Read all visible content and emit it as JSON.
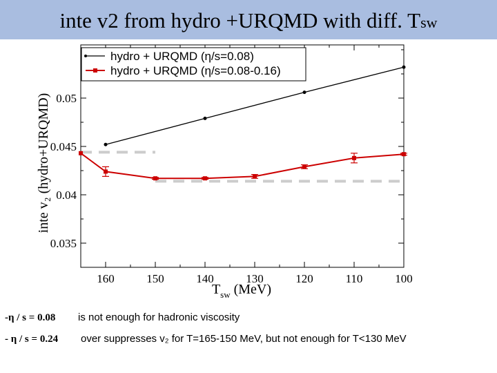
{
  "slide": {
    "title_main": "inte v2 from hydro +URQMD with diff. T",
    "title_sub": "sw"
  },
  "chart_data": {
    "type": "line",
    "ylabel": "inte v₂ (hydro+URQMD)",
    "xlabel_main": "T",
    "xlabel_sub": "sw",
    "xlabel_unit": "(MeV)",
    "x_reversed": true,
    "xlim": [
      165,
      100
    ],
    "ylim": [
      0.0325,
      0.0555
    ],
    "x_ticks": [
      160,
      150,
      140,
      130,
      120,
      110,
      100
    ],
    "y_ticks": [
      0.035,
      0.04,
      0.045,
      0.05
    ],
    "y_tick_labels": [
      "0.035",
      "0.04",
      "0.045",
      "0.05"
    ],
    "legend_position": "top-left",
    "series": [
      {
        "name": "hydro + URQMD (η/s=0.08)",
        "color": "#000000",
        "x": [
          160,
          140,
          120,
          100
        ],
        "y": [
          0.0452,
          0.0479,
          0.0506,
          0.0532
        ],
        "err": [
          0,
          0,
          0,
          0
        ]
      },
      {
        "name": "hydro + URQMD (η/s=0.08-0.16)",
        "color": "#cc0000",
        "x": [
          165,
          160,
          150,
          140,
          130,
          120,
          110,
          100
        ],
        "y": [
          0.0443,
          0.0424,
          0.0417,
          0.0417,
          0.0419,
          0.0429,
          0.0438,
          0.0442
        ],
        "err": [
          0,
          0.0005,
          0.0001,
          0.0001,
          0.0002,
          0.0002,
          0.0005,
          0.0001
        ]
      }
    ],
    "reference_lines": [
      {
        "x": [
          165,
          150
        ],
        "y": 0.0444,
        "style": "dashed",
        "color": "#cccccc"
      },
      {
        "x": [
          150,
          100
        ],
        "y": 0.0414,
        "style": "dashed",
        "color": "#cccccc"
      }
    ]
  },
  "notes": [
    {
      "equation": "-η / s = 0.08",
      "text": "is not enough for hadronic viscosity"
    },
    {
      "equation": "- η / s = 0.24",
      "text": "over suppresses v₂ for T=165-150 MeV, but not enough for T<130 MeV"
    }
  ]
}
